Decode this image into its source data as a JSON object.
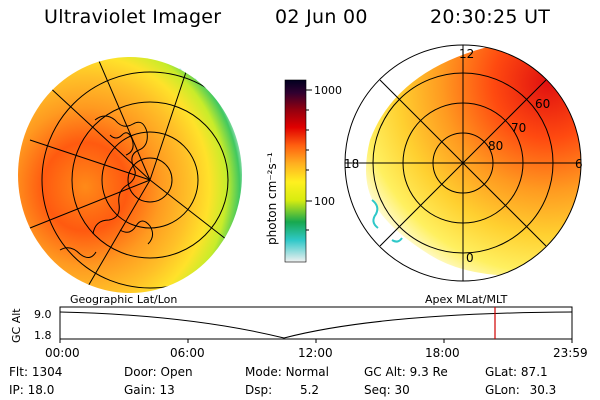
{
  "header": {
    "title": "Ultraviolet Imager",
    "date": "02 Jun 00",
    "time": "20:30:25 UT"
  },
  "colorbar": {
    "unit_label": "photon cm⁻²s⁻¹",
    "ticks": [
      "1000",
      "100"
    ],
    "colors": [
      "#f0f0f0",
      "#2fc8c8",
      "#17a84f",
      "#d8ec10",
      "#fff020",
      "#ffb020",
      "#ff6010",
      "#e00000",
      "#900010",
      "#300030",
      "#000020"
    ]
  },
  "left_panel": {
    "label": "Geographic Lat/Lon"
  },
  "right_panel": {
    "label": "Apex MLat/MLT",
    "mlt_labels": {
      "top": "12",
      "left": "18",
      "right": "6",
      "bottom": "0"
    },
    "lat_labels": [
      "80",
      "70",
      "60"
    ]
  },
  "altitude_plot": {
    "ylabel": "GC Alt",
    "yticks": [
      "9.0",
      "1.8"
    ],
    "xticks": [
      "00:00",
      "06:00",
      "12:00",
      "18:00",
      "23:59"
    ],
    "current_time_marker": "20:30",
    "marker_color": "#d00000"
  },
  "status": {
    "row1": [
      {
        "label": "Flt:",
        "value": "1304"
      },
      {
        "label": "Door:",
        "value": "Open"
      },
      {
        "label": "Mode:",
        "value": "Normal"
      },
      {
        "label": "GC Alt:",
        "value": "9.3 Re"
      },
      {
        "label": "GLat:",
        "value": "87.1"
      }
    ],
    "row2": [
      {
        "label": "IP:",
        "value": "18.0"
      },
      {
        "label": "Gain:",
        "value": "13"
      },
      {
        "label": "Dsp:",
        "value": "5.2"
      },
      {
        "label": "Seq:",
        "value": "30"
      },
      {
        "label": "GLon:",
        "value": "30.3"
      }
    ]
  }
}
